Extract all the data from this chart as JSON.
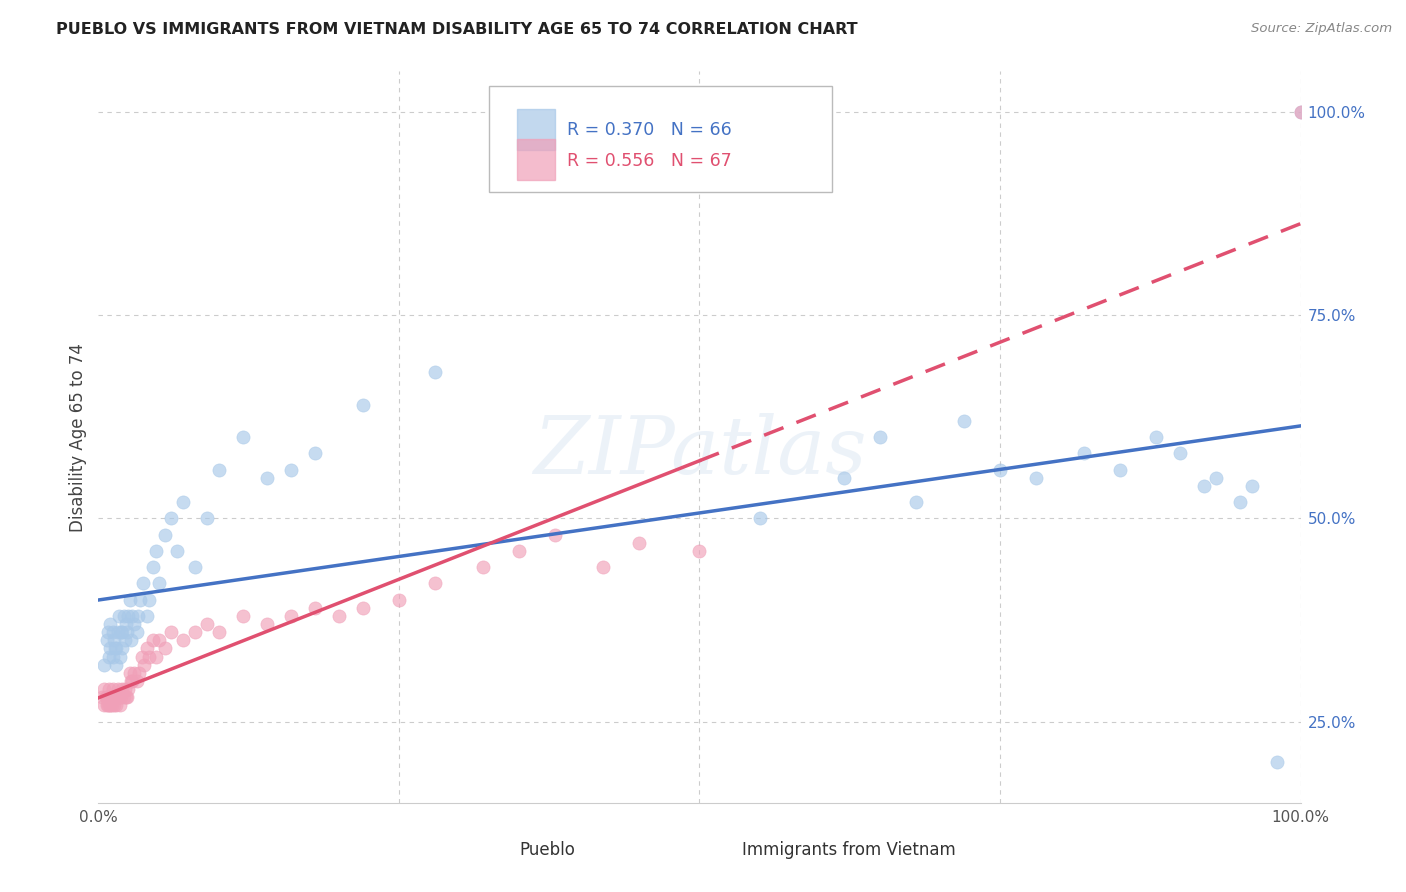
{
  "title": "PUEBLO VS IMMIGRANTS FROM VIETNAM DISABILITY AGE 65 TO 74 CORRELATION CHART",
  "source": "Source: ZipAtlas.com",
  "ylabel": "Disability Age 65 to 74",
  "xlim": [
    0,
    1
  ],
  "ylim": [
    0.15,
    1.05
  ],
  "pueblo_R": 0.37,
  "pueblo_N": 66,
  "vietnam_R": 0.556,
  "vietnam_N": 67,
  "pueblo_color": "#a8c8e8",
  "vietnam_color": "#f0a0b8",
  "pueblo_line_color": "#4472c4",
  "vietnam_line_color": "#e05070",
  "background_color": "#ffffff",
  "pueblo_x": [
    0.005,
    0.007,
    0.008,
    0.009,
    0.01,
    0.01,
    0.012,
    0.012,
    0.013,
    0.014,
    0.015,
    0.015,
    0.016,
    0.017,
    0.018,
    0.019,
    0.02,
    0.02,
    0.021,
    0.022,
    0.023,
    0.024,
    0.025,
    0.026,
    0.027,
    0.028,
    0.03,
    0.032,
    0.033,
    0.035,
    0.037,
    0.04,
    0.042,
    0.045,
    0.048,
    0.05,
    0.055,
    0.06,
    0.065,
    0.07,
    0.08,
    0.09,
    0.1,
    0.12,
    0.14,
    0.16,
    0.18,
    0.22,
    0.28,
    0.55,
    0.62,
    0.65,
    0.68,
    0.72,
    0.75,
    0.78,
    0.82,
    0.85,
    0.88,
    0.9,
    0.92,
    0.93,
    0.95,
    0.96,
    0.98,
    1.0
  ],
  "pueblo_y": [
    0.32,
    0.35,
    0.36,
    0.33,
    0.34,
    0.37,
    0.33,
    0.36,
    0.35,
    0.34,
    0.32,
    0.34,
    0.36,
    0.38,
    0.33,
    0.36,
    0.34,
    0.36,
    0.38,
    0.35,
    0.37,
    0.36,
    0.38,
    0.4,
    0.35,
    0.38,
    0.37,
    0.36,
    0.38,
    0.4,
    0.42,
    0.38,
    0.4,
    0.44,
    0.46,
    0.42,
    0.48,
    0.5,
    0.46,
    0.52,
    0.44,
    0.5,
    0.56,
    0.6,
    0.55,
    0.56,
    0.58,
    0.64,
    0.68,
    0.5,
    0.55,
    0.6,
    0.52,
    0.62,
    0.56,
    0.55,
    0.58,
    0.56,
    0.6,
    0.58,
    0.54,
    0.55,
    0.52,
    0.54,
    0.2,
    1.0
  ],
  "vietnam_x": [
    0.003,
    0.005,
    0.005,
    0.006,
    0.007,
    0.007,
    0.008,
    0.008,
    0.009,
    0.009,
    0.01,
    0.01,
    0.01,
    0.011,
    0.011,
    0.012,
    0.012,
    0.013,
    0.013,
    0.014,
    0.015,
    0.015,
    0.016,
    0.016,
    0.017,
    0.018,
    0.019,
    0.02,
    0.021,
    0.022,
    0.023,
    0.024,
    0.025,
    0.026,
    0.027,
    0.028,
    0.03,
    0.032,
    0.034,
    0.036,
    0.038,
    0.04,
    0.042,
    0.045,
    0.048,
    0.05,
    0.055,
    0.06,
    0.07,
    0.08,
    0.09,
    0.1,
    0.12,
    0.14,
    0.16,
    0.18,
    0.2,
    0.22,
    0.25,
    0.28,
    0.32,
    0.35,
    0.38,
    0.42,
    0.45,
    0.5,
    1.0
  ],
  "vietnam_y": [
    0.28,
    0.27,
    0.29,
    0.28,
    0.27,
    0.28,
    0.27,
    0.28,
    0.29,
    0.28,
    0.27,
    0.28,
    0.27,
    0.28,
    0.27,
    0.28,
    0.29,
    0.27,
    0.28,
    0.28,
    0.28,
    0.27,
    0.29,
    0.28,
    0.28,
    0.27,
    0.28,
    0.29,
    0.28,
    0.29,
    0.28,
    0.28,
    0.29,
    0.31,
    0.3,
    0.3,
    0.31,
    0.3,
    0.31,
    0.33,
    0.32,
    0.34,
    0.33,
    0.35,
    0.33,
    0.35,
    0.34,
    0.36,
    0.35,
    0.36,
    0.37,
    0.36,
    0.38,
    0.37,
    0.38,
    0.39,
    0.38,
    0.39,
    0.4,
    0.42,
    0.44,
    0.46,
    0.48,
    0.44,
    0.47,
    0.46,
    1.0
  ]
}
